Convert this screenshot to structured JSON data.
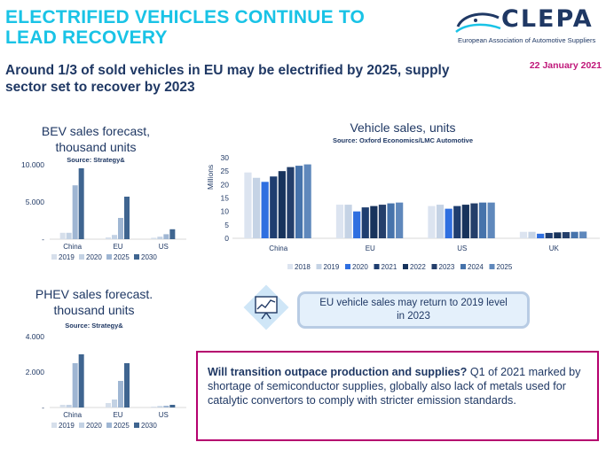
{
  "header": {
    "title": "ELECTRIFIED VEHICLES CONTINUE TO LEAD RECOVERY",
    "subtitle": "Around 1/3 of sold vehicles in EU may be electrified by 2025, supply sector set to recover by 2023",
    "date": "22 January 2021"
  },
  "logo": {
    "name": "CLEPA",
    "tagline": "European Association of Automotive Suppliers"
  },
  "callout": {
    "text": "EU vehicle sales may return to 2019 level in 2023",
    "icon": "chart-presentation-icon"
  },
  "note": {
    "bold": "Will transition outpace production and supplies?",
    "text": " Q1 of 2021 marked by shortage of semiconductor supplies, globally also lack of metals used for catalytic convertors to comply with stricter emission standards."
  },
  "colors": {
    "c2018": "#dbe3ef",
    "c2019": "#d0dbe9",
    "c2020": "#b3c6de",
    "c2020b": "#2f6fe0",
    "c2021": "#1e3d6e",
    "c2022": "#17365d",
    "c2023": "#203864",
    "c2024": "#3e6ea8",
    "c2025": "#8eaacb",
    "c2030": "#2b4f7f"
  },
  "chart_data": [
    {
      "id": "bev",
      "type": "bar",
      "title": "BEV sales forecast, thousand units",
      "title_lines": [
        "BEV sales forecast,",
        "thousand units"
      ],
      "source": "Source: Strategy&",
      "categories": [
        "China",
        "EU",
        "US"
      ],
      "yticks": [
        "10.000",
        "5.000",
        "-"
      ],
      "ylim": [
        0,
        10500
      ],
      "series": [
        {
          "name": "2019",
          "color": "#d6dfeb",
          "values": [
            900,
            250,
            200
          ]
        },
        {
          "name": "2020",
          "color": "#c3d2e4",
          "values": [
            900,
            600,
            350
          ]
        },
        {
          "name": "2025",
          "color": "#9fb6d3",
          "values": [
            7600,
            3000,
            700
          ]
        },
        {
          "name": "2030",
          "color": "#3f6590",
          "values": [
            10000,
            6000,
            1400
          ]
        }
      ],
      "legend": "bottom"
    },
    {
      "id": "phev",
      "type": "bar",
      "title": "PHEV sales forecast. thousand units",
      "title_lines": [
        "PHEV sales forecast.",
        "thousand units"
      ],
      "source": "Source: Strategy&",
      "categories": [
        "China",
        "EU",
        "US"
      ],
      "yticks": [
        "4.000",
        "2.000",
        "-"
      ],
      "ylim": [
        0,
        4000
      ],
      "series": [
        {
          "name": "2019",
          "color": "#d6dfeb",
          "values": [
            150,
            250,
            50
          ]
        },
        {
          "name": "2020",
          "color": "#c3d2e4",
          "values": [
            150,
            450,
            80
          ]
        },
        {
          "name": "2025",
          "color": "#9fb6d3",
          "values": [
            2500,
            1500,
            100
          ]
        },
        {
          "name": "2030",
          "color": "#3f6590",
          "values": [
            3000,
            2500,
            150
          ]
        }
      ],
      "legend": "bottom"
    },
    {
      "id": "vehicles",
      "type": "bar",
      "title": "Vehicle sales, units",
      "source": "Source: Oxford Economics/LMC Automotive",
      "ylabel": "Millions",
      "categories": [
        "China",
        "EU",
        "US",
        "UK"
      ],
      "yticks": [
        0,
        5,
        10,
        15,
        20,
        25,
        30
      ],
      "ylim": [
        0,
        30
      ],
      "series": [
        {
          "name": "2018",
          "color": "#dce4f0",
          "values": [
            24.5,
            12.5,
            12,
            2.4
          ]
        },
        {
          "name": "2019",
          "color": "#c5d3e5",
          "values": [
            22.5,
            12.5,
            12.5,
            2.4
          ]
        },
        {
          "name": "2020",
          "color": "#2f6fe0",
          "values": [
            21,
            10,
            11,
            1.7
          ]
        },
        {
          "name": "2021",
          "color": "#1f3e70",
          "values": [
            23,
            11.5,
            12,
            2.0
          ]
        },
        {
          "name": "2022",
          "color": "#17335c",
          "values": [
            25,
            12,
            12.5,
            2.2
          ]
        },
        {
          "name": "2023",
          "color": "#243f6b",
          "values": [
            26.5,
            12.5,
            13,
            2.3
          ]
        },
        {
          "name": "2024",
          "color": "#4673ab",
          "values": [
            27,
            13,
            13.3,
            2.4
          ]
        },
        {
          "name": "2025",
          "color": "#5f88bc",
          "values": [
            27.5,
            13.3,
            13.3,
            2.5
          ]
        }
      ],
      "legend": "bottom"
    }
  ]
}
